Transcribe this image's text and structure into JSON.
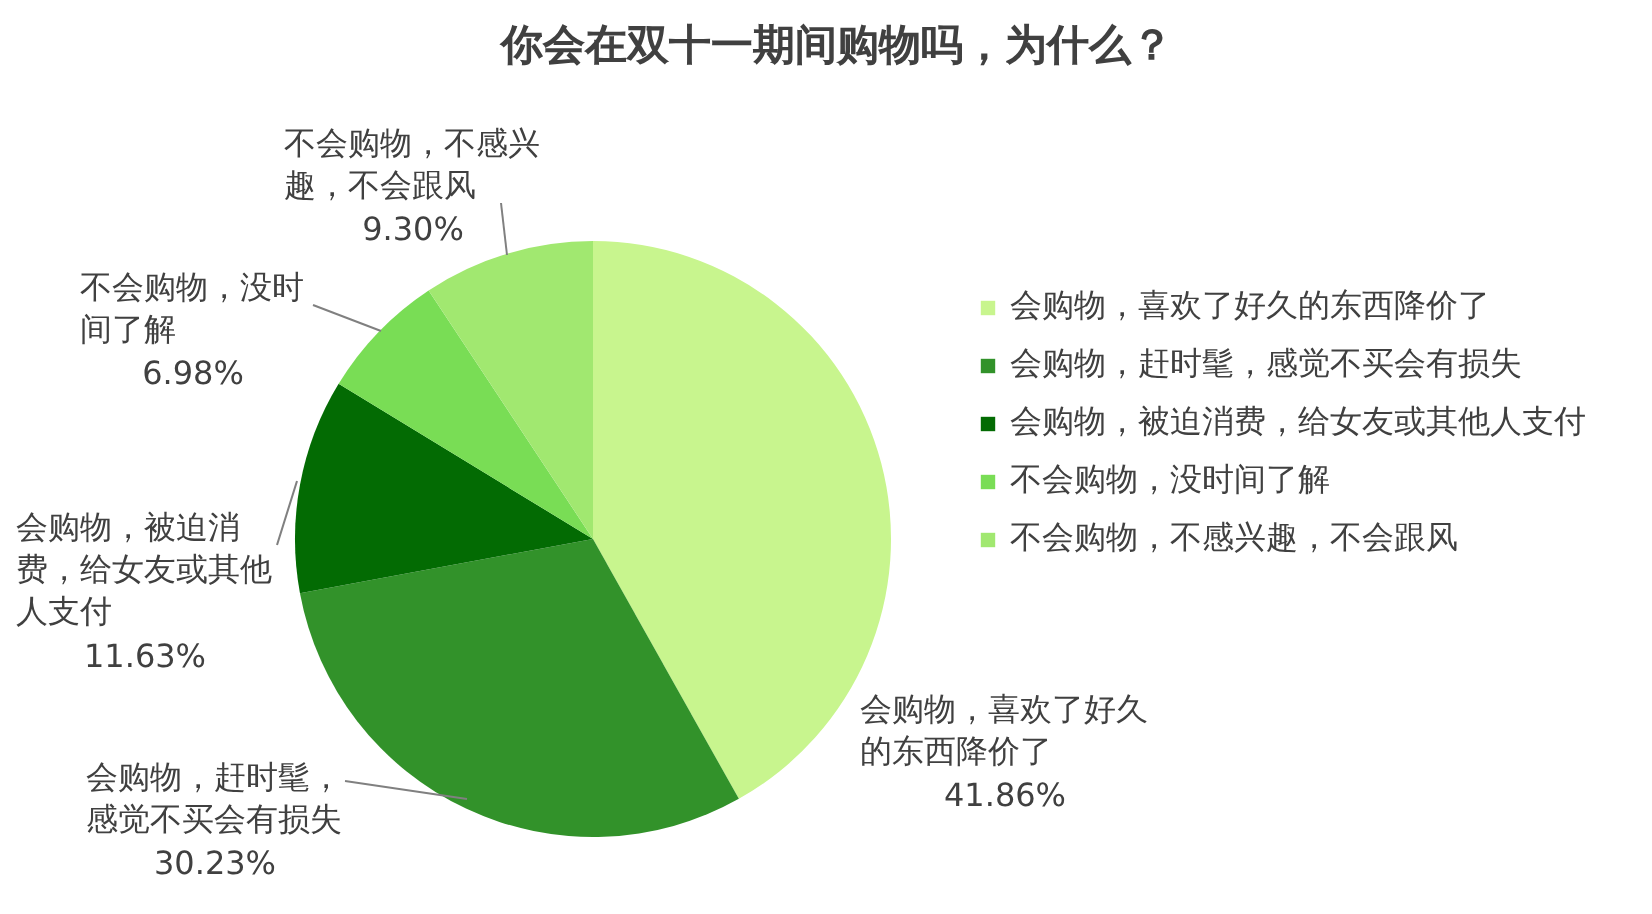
{
  "chart_data": {
    "type": "pie",
    "title": "你会在双十一期间购物吗，为什么？",
    "categories": [
      "会购物，喜欢了好久的东西降价了",
      "会购物，赶时髦，感觉不买会有损失",
      "会购物，被迫消费，给女友或其他人支付",
      "不会购物，没时间了解",
      "不会购物，不感兴趣，不会跟风"
    ],
    "values": [
      41.86,
      30.23,
      11.63,
      6.98,
      9.3
    ],
    "colors": [
      "#c8f58e",
      "#32922a",
      "#036b03",
      "#79dd55",
      "#a1e870"
    ],
    "value_labels": [
      "41.86%",
      "30.23%",
      "11.63%",
      "6.98%",
      "9.30%"
    ],
    "legend": "right"
  }
}
